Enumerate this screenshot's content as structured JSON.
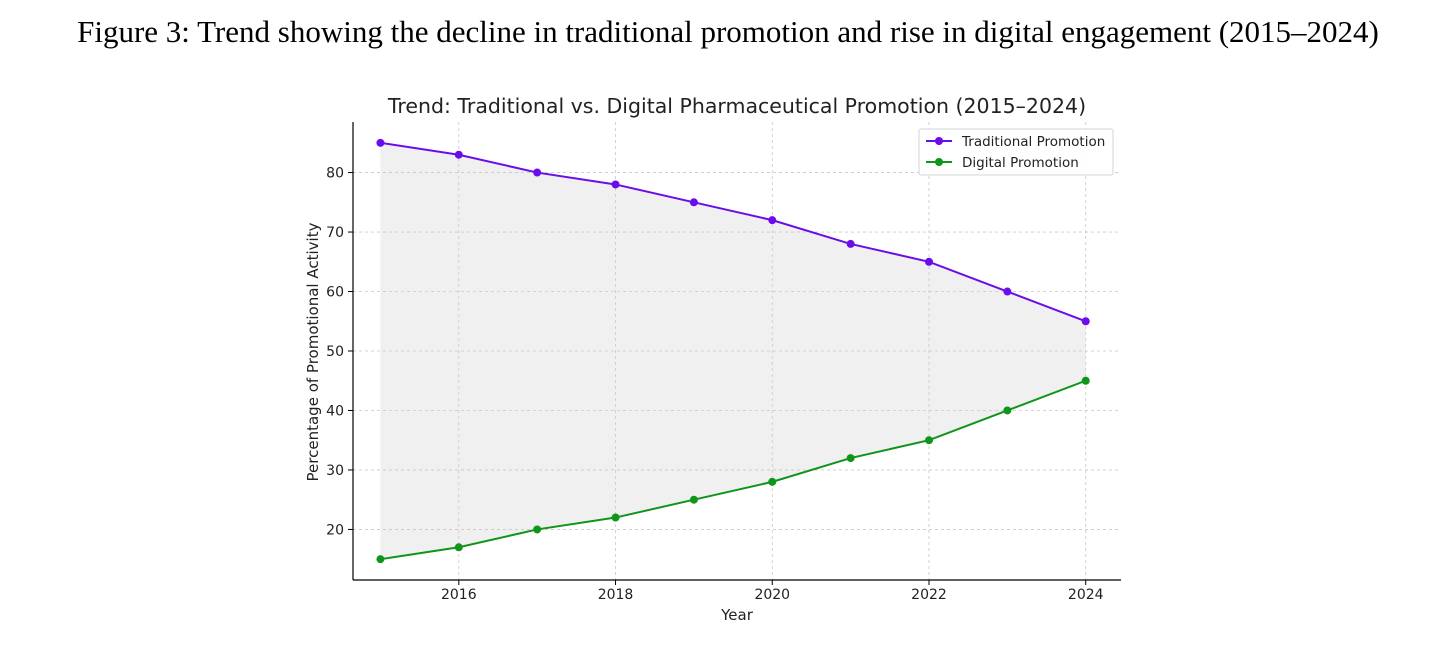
{
  "figure": {
    "caption": "Figure 3: Trend showing the decline in traditional promotion and rise in digital engagement (2015–2024)"
  },
  "chart_data": {
    "type": "line",
    "title": "Trend: Traditional vs. Digital Pharmaceutical Promotion (2015–2024)",
    "xlabel": "Year",
    "ylabel": "Percentage of Promotional Activity",
    "x": [
      2015,
      2016,
      2017,
      2018,
      2019,
      2020,
      2021,
      2022,
      2023,
      2024
    ],
    "xlim": [
      2014.65,
      2024.45
    ],
    "ylim": [
      11.5,
      88.5
    ],
    "xticks": [
      2016,
      2018,
      2020,
      2022,
      2024
    ],
    "yticks": [
      20,
      30,
      40,
      50,
      60,
      70,
      80
    ],
    "grid": true,
    "legend_position": "top-right",
    "fill_between": {
      "color": "#f0f0f0",
      "series": [
        "Traditional Promotion",
        "Digital Promotion"
      ]
    },
    "series": [
      {
        "name": "Traditional Promotion",
        "color": "#6a0dea",
        "values": [
          85,
          83,
          80,
          78,
          75,
          72,
          68,
          65,
          60,
          55
        ]
      },
      {
        "name": "Digital Promotion",
        "color": "#10941a",
        "values": [
          15,
          17,
          20,
          22,
          25,
          28,
          32,
          35,
          40,
          45
        ]
      }
    ]
  }
}
